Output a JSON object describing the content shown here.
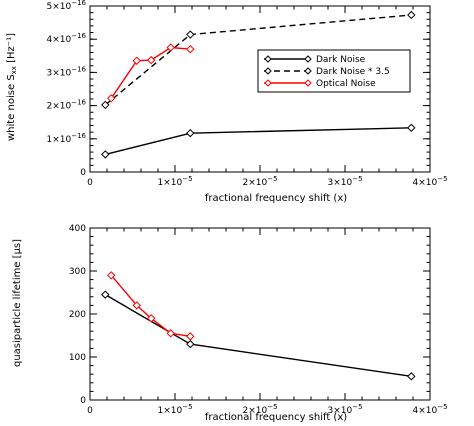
{
  "chart_data": [
    {
      "type": "line",
      "title": "",
      "xlabel": "fractional frequency shift (x)",
      "ylabel_main": "white noise S",
      "ylabel_sub": "xx",
      "ylabel_unit": "[Hz⁻¹]",
      "xlim": [
        0,
        4e-05
      ],
      "ylim": [
        0,
        5e-16
      ],
      "xticks": [
        {
          "value": 0,
          "mant": "0",
          "exp": ""
        },
        {
          "value": 1e-05,
          "mant": "1×10",
          "exp": "−5"
        },
        {
          "value": 2e-05,
          "mant": "2×10",
          "exp": "−5"
        },
        {
          "value": 3e-05,
          "mant": "3×10",
          "exp": "−5"
        },
        {
          "value": 4e-05,
          "mant": "4×10",
          "exp": "−5"
        }
      ],
      "yticks": [
        {
          "value": 0,
          "mant": "0",
          "exp": ""
        },
        {
          "value": 1e-16,
          "mant": "1×10",
          "exp": "−16"
        },
        {
          "value": 2e-16,
          "mant": "2×10",
          "exp": "−16"
        },
        {
          "value": 3e-16,
          "mant": "3×10",
          "exp": "−16"
        },
        {
          "value": 4e-16,
          "mant": "4×10",
          "exp": "−16"
        },
        {
          "value": 5e-16,
          "mant": "5×10",
          "exp": "−16"
        }
      ],
      "legend": "top-right",
      "series": [
        {
          "name": "Dark Noise",
          "color": "#000000",
          "dash": "solid",
          "marker": "diamond",
          "x": [
            1.8e-06,
            1.18e-05,
            3.78e-05
          ],
          "y": [
            5.3e-17,
            1.17e-16,
            1.33e-16
          ]
        },
        {
          "name": "Dark Noise * 3.5",
          "color": "#000000",
          "dash": "dashed",
          "marker": "diamond",
          "x": [
            1.8e-06,
            1.18e-05,
            3.78e-05
          ],
          "y": [
            2.02e-16,
            4.14e-16,
            4.73e-16
          ]
        },
        {
          "name": "Optical Noise",
          "color": "#ff0000",
          "dash": "solid",
          "marker": "diamond",
          "x": [
            2.5e-06,
            5.5e-06,
            7.2e-06,
            9.5e-06,
            1.18e-05
          ],
          "y": [
            2.22e-16,
            3.35e-16,
            3.37e-16,
            3.75e-16,
            3.7e-16
          ]
        }
      ]
    },
    {
      "type": "line",
      "title": "",
      "xlabel": "fractional frequency shift (x)",
      "ylabel": "quasiparticle lifetime [μs]",
      "xlim": [
        0,
        4e-05
      ],
      "ylim": [
        0,
        400
      ],
      "xticks": [
        {
          "value": 0,
          "mant": "0",
          "exp": ""
        },
        {
          "value": 1e-05,
          "mant": "1×10",
          "exp": "−5"
        },
        {
          "value": 2e-05,
          "mant": "2×10",
          "exp": "−5"
        },
        {
          "value": 3e-05,
          "mant": "3×10",
          "exp": "−5"
        },
        {
          "value": 4e-05,
          "mant": "4×10",
          "exp": "−5"
        }
      ],
      "yticks": [
        {
          "value": 0,
          "mant": "0",
          "exp": ""
        },
        {
          "value": 100,
          "mant": "100",
          "exp": ""
        },
        {
          "value": 200,
          "mant": "200",
          "exp": ""
        },
        {
          "value": 300,
          "mant": "300",
          "exp": ""
        },
        {
          "value": 400,
          "mant": "400",
          "exp": ""
        }
      ],
      "series": [
        {
          "color": "#000000",
          "dash": "solid",
          "marker": "diamond",
          "x": [
            1.8e-06,
            1.18e-05,
            3.78e-05
          ],
          "y": [
            245,
            130,
            55
          ]
        },
        {
          "color": "#ff0000",
          "dash": "solid",
          "marker": "diamond",
          "x": [
            2.5e-06,
            5.5e-06,
            7.2e-06,
            9.5e-06,
            1.18e-05
          ],
          "y": [
            290,
            220,
            190,
            155,
            148
          ]
        }
      ]
    }
  ]
}
